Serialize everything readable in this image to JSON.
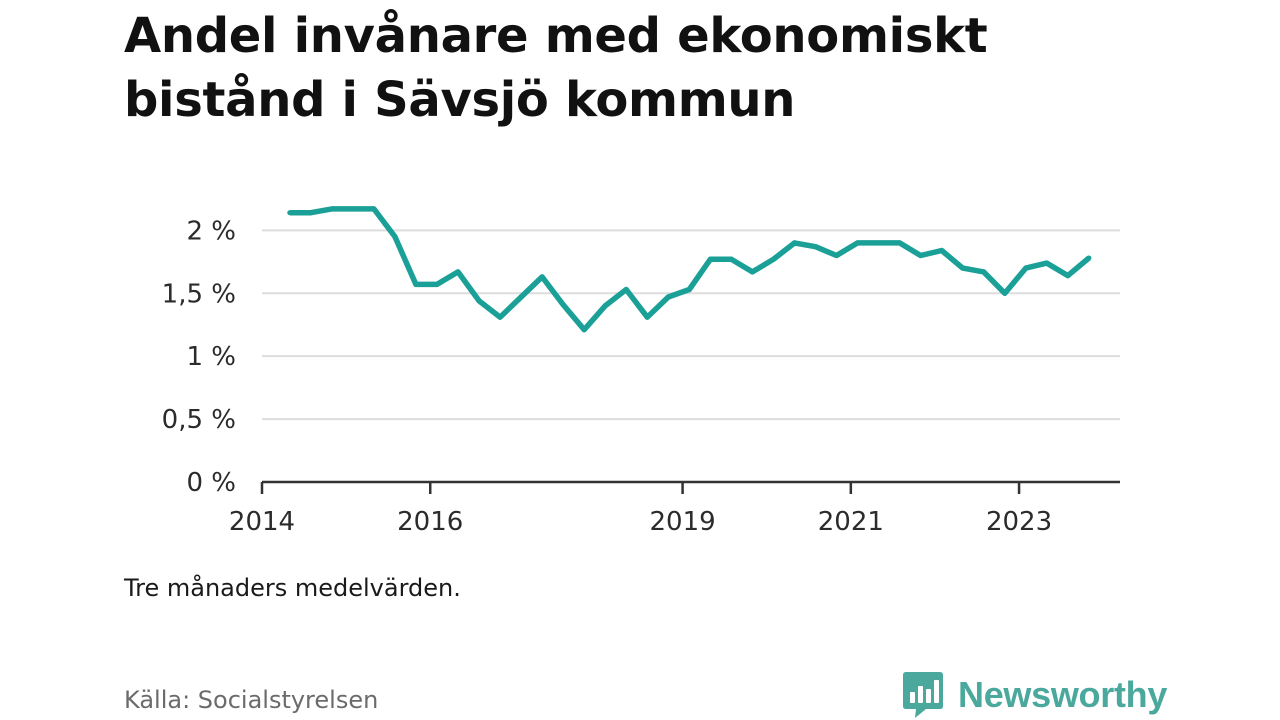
{
  "colors": {
    "line": "#1aa097",
    "grid": "#dddddd",
    "axis": "#333333",
    "brand": "#4aa89d"
  },
  "chart_data": {
    "type": "line",
    "title": "Andel invånare med ekonomiskt bistånd i Sävsjö kommun",
    "xlabel": "",
    "ylabel": "",
    "ylim": [
      0,
      2.4
    ],
    "yticks": [
      0,
      0.5,
      1,
      1.5,
      2
    ],
    "ytick_labels": [
      "0 %",
      "0,5 %",
      "1 %",
      "1,5 %",
      "2 %"
    ],
    "xlim": [
      2014.0,
      2024.2
    ],
    "xticks": [
      2014,
      2016,
      2019,
      2021,
      2023
    ],
    "xtick_labels": [
      "2014",
      "2016",
      "2019",
      "2021",
      "2023"
    ],
    "grid": true,
    "series": [
      {
        "name": "Andel invånare med ekonomiskt bistånd",
        "x": [
          2014.33,
          2014.58,
          2014.83,
          2015.08,
          2015.33,
          2015.58,
          2015.83,
          2016.08,
          2016.33,
          2016.58,
          2016.83,
          2017.08,
          2017.33,
          2017.58,
          2017.83,
          2018.08,
          2018.33,
          2018.58,
          2018.83,
          2019.08,
          2019.33,
          2019.58,
          2019.83,
          2020.08,
          2020.33,
          2020.58,
          2020.83,
          2021.08,
          2021.33,
          2021.58,
          2021.83,
          2022.08,
          2022.33,
          2022.58,
          2022.83,
          2023.08,
          2023.33,
          2023.58,
          2023.83
        ],
        "values": [
          2.14,
          2.14,
          2.17,
          2.17,
          2.17,
          1.95,
          1.57,
          1.57,
          1.67,
          1.44,
          1.31,
          1.47,
          1.63,
          1.41,
          1.21,
          1.4,
          1.53,
          1.31,
          1.47,
          1.53,
          1.77,
          1.77,
          1.67,
          1.77,
          1.9,
          1.87,
          1.8,
          1.9,
          1.9,
          1.9,
          1.8,
          1.84,
          1.7,
          1.67,
          1.5,
          1.7,
          1.74,
          1.64,
          1.78
        ]
      }
    ]
  },
  "footer": {
    "note": "Tre månaders medelvärden.",
    "source": "Källa: Socialstyrelsen",
    "brand": "Newsworthy"
  }
}
